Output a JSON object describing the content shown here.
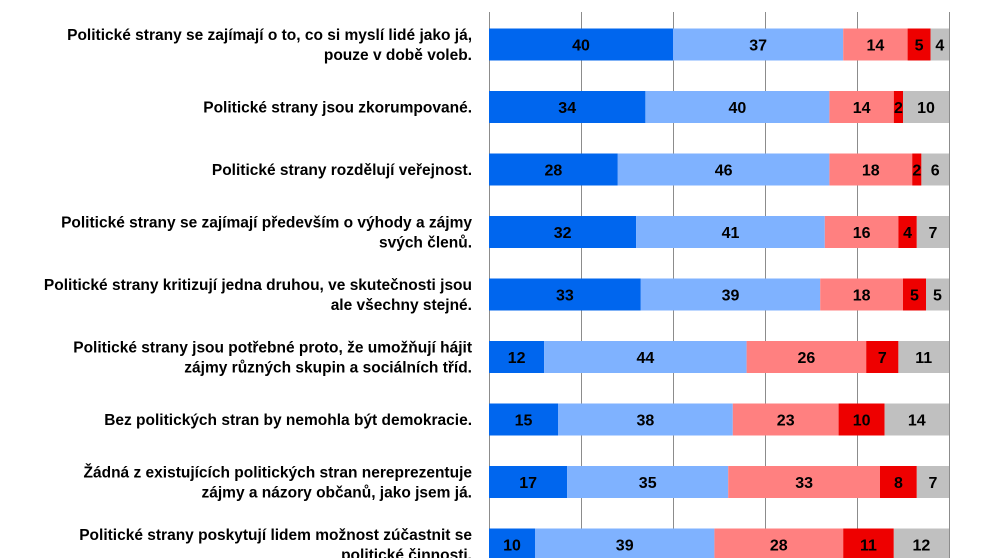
{
  "chart_data": {
    "type": "bar",
    "orientation": "horizontal",
    "stacked": true,
    "xlim": [
      0,
      100
    ],
    "grid": true,
    "categories": [
      [
        "Politické strany se zajímají o to, co si myslí lidé jako já,",
        "pouze v době voleb."
      ],
      [
        "Politické strany jsou zkorumpované."
      ],
      [
        "Politické strany rozdělují veřejnost."
      ],
      [
        "Politické strany se zajímají především o výhody a zájmy",
        "svých členů."
      ],
      [
        "Politické strany kritizují jedna druhou, ve skutečnosti jsou",
        "ale všechny stejné."
      ],
      [
        "Politické strany jsou potřebné proto, že umožňují hájit",
        "zájmy různých skupin a sociálních tříd."
      ],
      [
        "Bez politických stran by nemohla být demokracie."
      ],
      [
        "Žádná z existujících politických stran nereprezentuje",
        "zájmy a názory občanů, jako jsem já."
      ],
      [
        "Politické strany poskytují lidem možnost zúčastnit se",
        "politické činnosti."
      ]
    ],
    "series": [
      {
        "color": "#0066ee",
        "values": [
          40,
          34,
          28,
          32,
          33,
          12,
          15,
          17,
          10
        ]
      },
      {
        "color": "#7fb2ff",
        "values": [
          37,
          40,
          46,
          41,
          39,
          44,
          38,
          35,
          39
        ]
      },
      {
        "color": "#ff8080",
        "values": [
          14,
          14,
          18,
          16,
          18,
          26,
          23,
          33,
          28
        ]
      },
      {
        "color": "#ee0000",
        "values": [
          5,
          2,
          2,
          4,
          5,
          7,
          10,
          8,
          11
        ]
      },
      {
        "color": "#c0c0c0",
        "values": [
          4,
          10,
          6,
          7,
          5,
          11,
          14,
          7,
          12
        ]
      }
    ]
  }
}
